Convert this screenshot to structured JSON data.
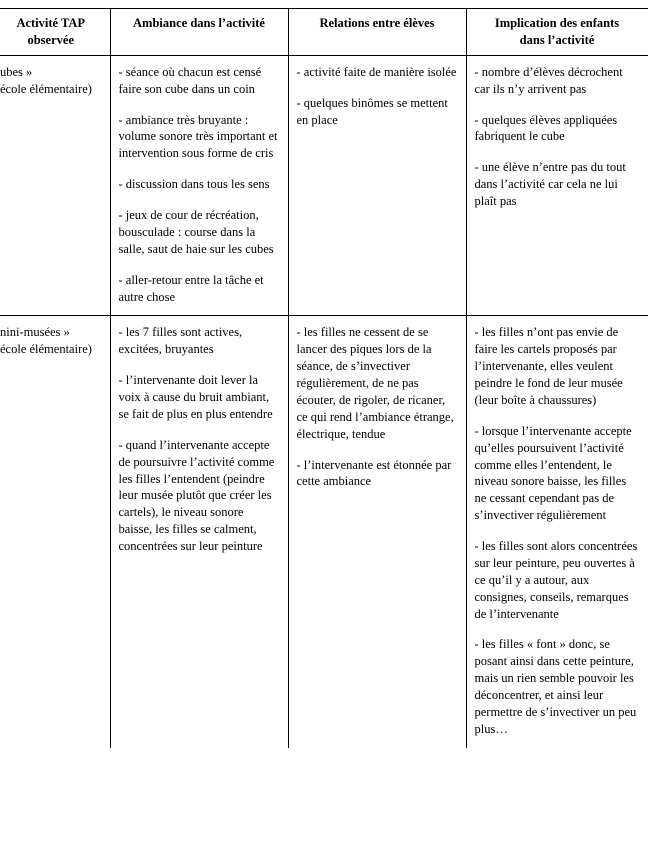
{
  "colors": {
    "border": "#000000",
    "background": "#ffffff",
    "text": "#000000"
  },
  "font": {
    "family": "Times New Roman",
    "header_size_pt": 10,
    "body_size_pt": 10
  },
  "headers": {
    "c0_line1": "Activité TAP",
    "c0_line2": "observée",
    "c1": "Ambiance dans l’activité",
    "c2": "Relations entre élèves",
    "c3_line1": "Implication des enfants",
    "c3_line2": "dans l’activité"
  },
  "rows": [
    {
      "activity_title": "ubes »",
      "activity_sub": "école élémentaire)",
      "ambiance": [
        "- séance où chacun est censé faire son cube dans un coin",
        "- ambiance très bruyante : volume sonore très important et intervention sous forme de cris",
        "- discussion dans tous les sens",
        "- jeux de cour de récréation, bousculade : course dans la salle, saut de haie sur les cubes",
        "- aller-retour entre la tâche et autre chose"
      ],
      "relations": [
        "- activité faite de manière isolée",
        "- quelques binômes se mettent en place"
      ],
      "implication": [
        "- nombre d’élèves décrochent car ils n’y arrivent pas",
        "- quelques élèves appliquées fabriquent le cube",
        "- une élève n’entre pas du tout dans l’activité car cela ne lui plaît pas"
      ]
    },
    {
      "activity_title": "nini-musées »",
      "activity_sub": "école élémentaire)",
      "ambiance": [
        "- les 7 filles sont actives, excitées, bruyantes",
        "- l’intervenante doit lever la voix à cause du bruit ambiant, se fait de plus en plus entendre",
        "- quand l’intervenante accepte de poursuivre l’activité comme les filles l’entendent (peindre leur musée plutôt que créer les cartels), le niveau sonore baisse, les filles se calment, concentrées sur leur peinture"
      ],
      "relations": [
        "- les filles ne cessent de se lancer des piques lors de la séance, de s’invectiver régulièrement, de ne pas écouter, de rigoler, de ricaner, ce qui rend l’ambiance étrange, électrique, tendue",
        "- l’intervenante est étonnée par cette ambiance"
      ],
      "implication": [
        "- les filles n’ont pas envie de faire les cartels proposés par l’intervenante, elles veulent peindre le fond de leur musée (leur boîte à chaussures)",
        "- lorsque l’intervenante accepte qu’elles poursuivent l’activité comme elles l’entendent, le niveau sonore baisse, les filles ne cessant cependant pas de s’invectiver régulièrement",
        "- les filles sont alors concentrées sur leur peinture, peu ouvertes à ce qu’il y a autour, aux consignes, conseils, remarques de l’intervenante",
        "- les filles « font » donc, se posant ainsi dans cette peinture, mais un rien semble pouvoir les déconcentrer, et ainsi leur permettre de s’invectiver un peu plus…"
      ]
    }
  ]
}
